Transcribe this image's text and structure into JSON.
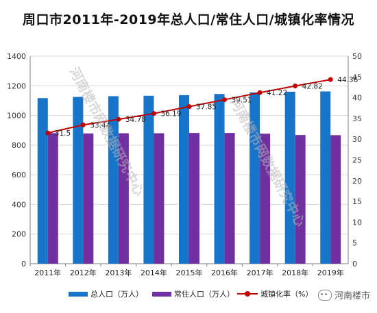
{
  "chart_data": {
    "type": "bar",
    "title": "周口市2011年-2019年总人口/常住人口/城镇化率情况",
    "categories": [
      "2011年",
      "2012年",
      "2013年",
      "2014年",
      "2015年",
      "2016年",
      "2017年",
      "2018年",
      "2019年"
    ],
    "series": [
      {
        "name": "总人口（万人）",
        "type": "bar",
        "axis": "left",
        "values": [
          1117,
          1125,
          1130,
          1133,
          1137,
          1145,
          1155,
          1160,
          1162
        ]
      },
      {
        "name": "常住人口（万人）",
        "type": "bar",
        "axis": "left",
        "values": [
          881,
          879,
          880,
          880,
          882,
          882,
          877,
          868,
          867
        ]
      },
      {
        "name": "城镇化率（%）",
        "type": "line",
        "axis": "right",
        "values": [
          31.5,
          33.44,
          34.78,
          36.19,
          37.85,
          39.51,
          41.22,
          42.82,
          44.36
        ],
        "labels": [
          "31.5",
          "33.44",
          "34.78",
          "36.19",
          "37.85",
          "39.51",
          "41.22",
          "42.82",
          "44.36"
        ]
      }
    ],
    "y_left": {
      "min": 0,
      "max": 1400,
      "step": 200
    },
    "y_right": {
      "min": 0,
      "max": 50,
      "step": 5
    },
    "grid": true,
    "legend_position": "bottom",
    "watermark": "河南楼市网数据研究中心",
    "brand": "河南楼市",
    "colors": {
      "total": "#1874c9",
      "resident": "#7030a0",
      "rate": "#c00000",
      "grid": "#d9d9d9",
      "axis": "#7f7f7f"
    }
  }
}
